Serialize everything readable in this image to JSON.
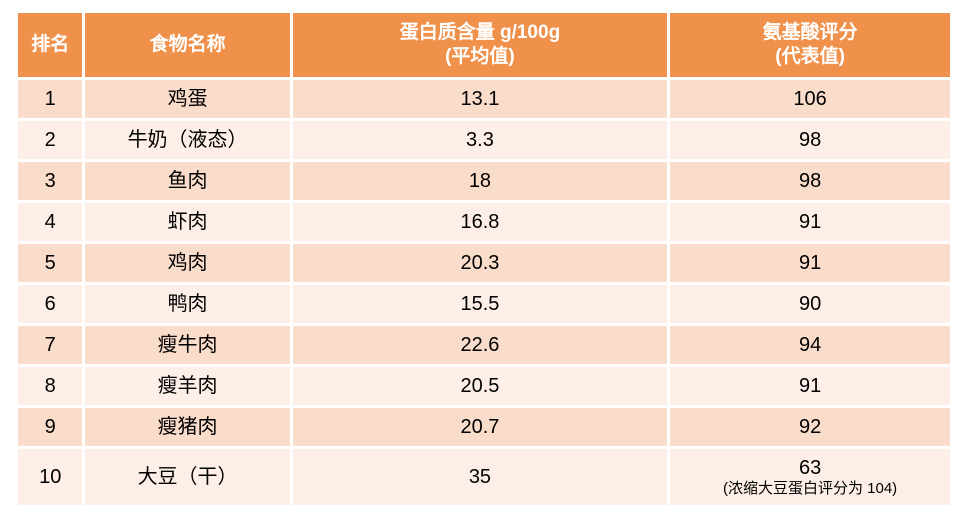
{
  "table": {
    "header": {
      "rank": "排名",
      "food": "食物名称",
      "protein_line1": "蛋白质含量 g/100g",
      "protein_line2": "(平均值)",
      "score_line1": "氨基酸评分",
      "score_line2": "(代表值)"
    },
    "rows": [
      {
        "rank": "1",
        "food": "鸡蛋",
        "protein": "13.1",
        "score": "106",
        "score_note": ""
      },
      {
        "rank": "2",
        "food": "牛奶（液态）",
        "protein": "3.3",
        "score": "98",
        "score_note": ""
      },
      {
        "rank": "3",
        "food": "鱼肉",
        "protein": "18",
        "score": "98",
        "score_note": ""
      },
      {
        "rank": "4",
        "food": "虾肉",
        "protein": "16.8",
        "score": "91",
        "score_note": ""
      },
      {
        "rank": "5",
        "food": "鸡肉",
        "protein": "20.3",
        "score": "91",
        "score_note": ""
      },
      {
        "rank": "6",
        "food": "鸭肉",
        "protein": "15.5",
        "score": "90",
        "score_note": ""
      },
      {
        "rank": "7",
        "food": "瘦牛肉",
        "protein": "22.6",
        "score": "94",
        "score_note": ""
      },
      {
        "rank": "8",
        "food": "瘦羊肉",
        "protein": "20.5",
        "score": "91",
        "score_note": ""
      },
      {
        "rank": "9",
        "food": "瘦猪肉",
        "protein": "20.7",
        "score": "92",
        "score_note": ""
      },
      {
        "rank": "10",
        "food": "大豆（干）",
        "protein": "35",
        "score": "63",
        "score_note": "(浓缩大豆蛋白评分为 104)"
      }
    ]
  },
  "colors": {
    "header_bg": "#F0914B",
    "row_odd_bg": "#FADCCB",
    "row_even_bg": "#FDEFE8",
    "header_text": "#FFFFFF",
    "body_text": "#000000",
    "page_bg": "#FFFFFF"
  },
  "chart_data": {
    "type": "table",
    "title": "",
    "columns": [
      "排名",
      "食物名称",
      "蛋白质含量 g/100g (平均值)",
      "氨基酸评分 (代表值)"
    ],
    "rows": [
      [
        "1",
        "鸡蛋",
        "13.1",
        "106"
      ],
      [
        "2",
        "牛奶（液态）",
        "3.3",
        "98"
      ],
      [
        "3",
        "鱼肉",
        "18",
        "98"
      ],
      [
        "4",
        "虾肉",
        "16.8",
        "91"
      ],
      [
        "5",
        "鸡肉",
        "20.3",
        "91"
      ],
      [
        "6",
        "鸭肉",
        "15.5",
        "90"
      ],
      [
        "7",
        "瘦牛肉",
        "22.6",
        "94"
      ],
      [
        "8",
        "瘦羊肉",
        "20.5",
        "91"
      ],
      [
        "9",
        "瘦猪肉",
        "20.7",
        "92"
      ],
      [
        "10",
        "大豆（干）",
        "35",
        "63 (浓缩大豆蛋白评分为 104)"
      ]
    ]
  }
}
